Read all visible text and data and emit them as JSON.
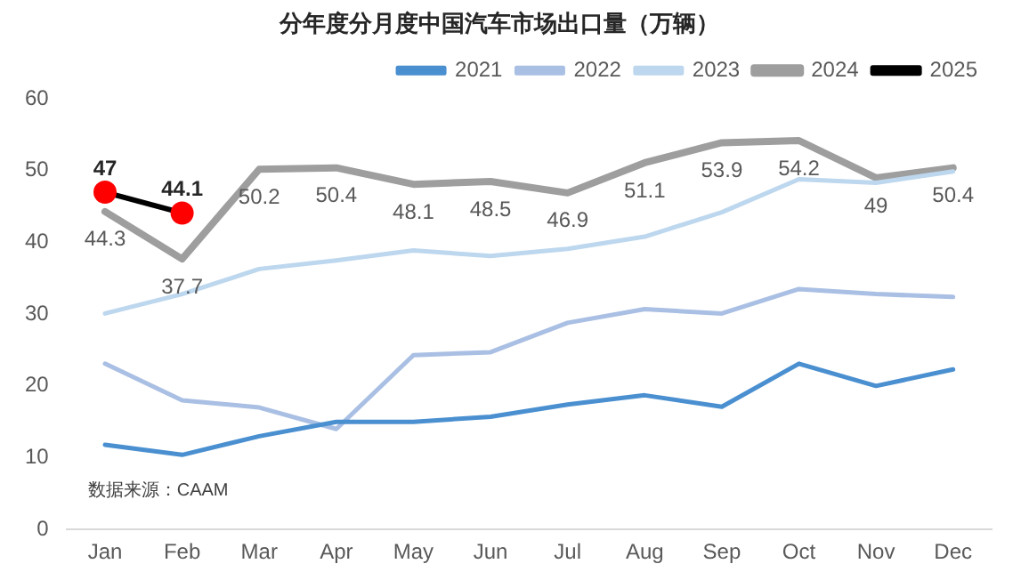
{
  "chart_data": {
    "type": "line",
    "title": "分年度分月度中国汽车市场出口量（万辆）",
    "categories": [
      "Jan",
      "Feb",
      "Mar",
      "Apr",
      "May",
      "Jun",
      "Jul",
      "Aug",
      "Sep",
      "Oct",
      "Nov",
      "Dec"
    ],
    "series": [
      {
        "name": "2021",
        "color": "#4a8fd0",
        "values": [
          11.8,
          10.4,
          13.0,
          15.0,
          15.0,
          15.7,
          17.4,
          18.7,
          17.1,
          23.1,
          20.0,
          22.3
        ]
      },
      {
        "name": "2022",
        "color": "#a9bfe3",
        "values": [
          23.1,
          18.0,
          17.0,
          14.0,
          24.3,
          24.7,
          28.8,
          30.7,
          30.1,
          33.5,
          32.8,
          32.4
        ]
      },
      {
        "name": "2023",
        "color": "#bdd7ee",
        "values": [
          30.1,
          32.8,
          36.3,
          37.5,
          38.9,
          38.1,
          39.1,
          40.8,
          44.2,
          48.8,
          48.3,
          49.9
        ]
      },
      {
        "name": "2024",
        "color": "#9e9e9e",
        "values": [
          44.3,
          37.7,
          50.2,
          50.4,
          48.1,
          48.5,
          46.9,
          51.1,
          53.9,
          54.2,
          49,
          50.4
        ],
        "value_labels": [
          "44.3",
          "37.7",
          "50.2",
          "50.4",
          "48.1",
          "48.5",
          "46.9",
          "51.1",
          "53.9",
          "54.2",
          "49",
          "50.4"
        ]
      },
      {
        "name": "2025",
        "color": "#000000",
        "marker": "circle",
        "values": [
          47,
          44.1,
          null,
          null,
          null,
          null,
          null,
          null,
          null,
          null,
          null,
          null
        ],
        "value_labels": [
          "47",
          "44.1",
          null,
          null,
          null,
          null,
          null,
          null,
          null,
          null,
          null,
          null
        ]
      }
    ],
    "ylim": [
      0,
      60
    ],
    "yticks": [
      0,
      10,
      20,
      30,
      40,
      50,
      60
    ],
    "grid": false,
    "legend": "top",
    "annotations": [
      "数据来源：CAAM"
    ]
  }
}
